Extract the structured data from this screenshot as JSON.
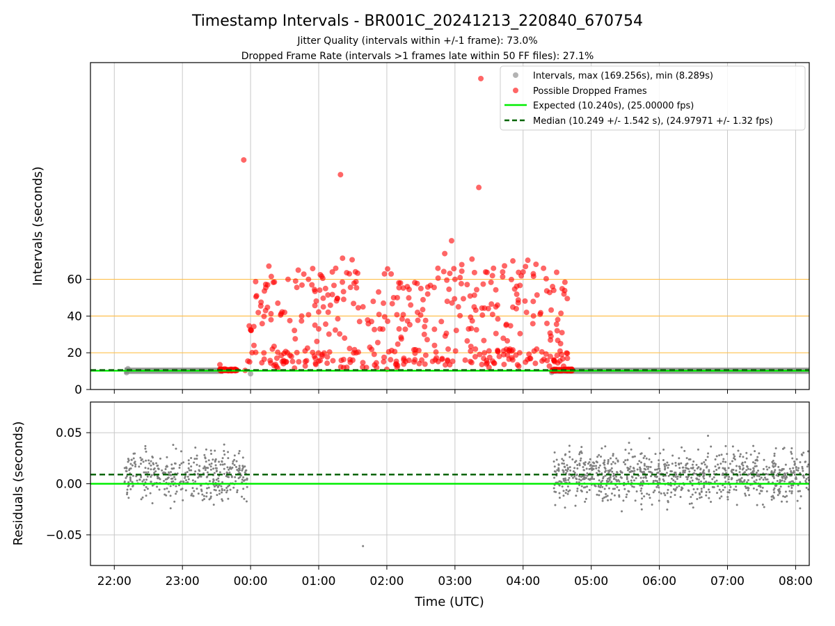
{
  "figure": {
    "title": "Timestamp Intervals - BR001C_20241213_220840_670754",
    "subtitle_1": "Jitter Quality (intervals within +/-1 frame): 73.0%",
    "subtitle_2": "Dropped Frame Rate (intervals >1 frames late within 50 FF files): 27.1%",
    "xlabel": "Time (UTC)"
  },
  "colors": {
    "intervals": "#808080",
    "dropped": "#ff0000",
    "expected": "#00ee00",
    "median": "#006400",
    "threshold": "#ffc04d",
    "grid": "#c8c8c8"
  },
  "chart_data": [
    {
      "type": "scatter",
      "ylabel": "Intervals (seconds)",
      "x_unit": "hours since 22:00 UTC",
      "xlim": [
        -0.35,
        10.2
      ],
      "ylim": [
        0,
        178
      ],
      "yticks": [
        0,
        20,
        40,
        60
      ],
      "xticks": [
        0,
        1,
        2,
        3,
        4,
        5,
        6,
        7,
        8,
        9,
        10
      ],
      "xtick_labels": [
        "22:00",
        "23:00",
        "00:00",
        "01:00",
        "02:00",
        "03:00",
        "04:00",
        "05:00",
        "06:00",
        "07:00",
        "08:00"
      ],
      "threshold_lines": [
        20,
        40,
        60
      ],
      "legend_position": "upper right",
      "legend": [
        "Intervals, max (169.256s), min (8.289s)",
        "Possible Dropped Frames",
        "Expected (10.240s), (25.00000 fps)",
        "Median (10.249 +/- 1.542 s), (24.97971 +/- 1.32 fps)"
      ],
      "series": [
        {
          "name": "Intervals, max (169.256s), min (8.289s)",
          "kind": "band",
          "value": 10.24,
          "segments": [
            [
              0.15,
              1.6
            ],
            [
              6.4,
              10.2
            ]
          ]
        },
        {
          "name": "Possible Dropped Frames",
          "kind": "points",
          "points": [
            [
              1.55,
              13.5
            ],
            [
              1.62,
              11.2
            ],
            [
              1.7,
              10.8
            ],
            [
              1.8,
              10.6
            ],
            [
              1.92,
              10.4
            ],
            [
              1.96,
              15.5
            ],
            [
              1.9,
              125
            ],
            [
              2.0,
              32.5
            ],
            [
              2.05,
              24
            ],
            [
              2.08,
              50.5
            ],
            [
              2.15,
              45.5
            ],
            [
              2.2,
              16.5
            ],
            [
              2.25,
              57
            ],
            [
              2.3,
              38
            ],
            [
              2.32,
              22
            ],
            [
              2.35,
              58.5
            ],
            [
              2.4,
              47
            ],
            [
              2.45,
              18.5
            ],
            [
              2.5,
              42
            ],
            [
              2.55,
              60
            ],
            [
              2.6,
              18
            ],
            [
              2.7,
              65
            ],
            [
              2.75,
              40
            ],
            [
              2.8,
              21
            ],
            [
              2.85,
              60
            ],
            [
              2.9,
              57
            ],
            [
              2.95,
              17
            ],
            [
              3.0,
              33
            ],
            [
              3.05,
              19
            ],
            [
              3.1,
              55
            ],
            [
              3.2,
              64
            ],
            [
              3.25,
              66
            ],
            [
              3.28,
              38.5
            ],
            [
              3.32,
              117
            ],
            [
              3.35,
              71.5
            ],
            [
              3.38,
              28
            ],
            [
              3.45,
              63
            ],
            [
              3.5,
              16
            ],
            [
              3.55,
              20
            ],
            [
              3.6,
              37
            ],
            [
              3.65,
              45
            ],
            [
              3.7,
              12
            ],
            [
              3.75,
              23
            ],
            [
              3.8,
              48
            ],
            [
              3.85,
              12
            ],
            [
              3.9,
              33
            ],
            [
              3.95,
              47
            ],
            [
              4.0,
              11
            ],
            [
              4.1,
              50
            ],
            [
              4.15,
              12
            ],
            [
              4.2,
              58
            ],
            [
              4.25,
              17
            ],
            [
              4.3,
              56
            ],
            [
              4.35,
              46
            ],
            [
              4.4,
              15
            ],
            [
              4.45,
              42
            ],
            [
              4.5,
              55
            ],
            [
              4.55,
              30
            ],
            [
              4.6,
              52
            ],
            [
              4.7,
              24
            ],
            [
              4.75,
              66
            ],
            [
              4.8,
              37
            ],
            [
              4.85,
              74
            ],
            [
              4.9,
              22
            ],
            [
              4.95,
              81
            ],
            [
              5.0,
              60
            ],
            [
              5.05,
              45
            ],
            [
              5.1,
              68
            ],
            [
              5.15,
              16
            ],
            [
              5.2,
              33
            ],
            [
              5.25,
              71
            ],
            [
              5.3,
              22
            ],
            [
              5.35,
              110
            ],
            [
              5.38,
              169.3
            ],
            [
              5.45,
              64
            ],
            [
              5.5,
              21
            ],
            [
              5.55,
              62
            ],
            [
              5.6,
              45
            ],
            [
              5.65,
              18
            ],
            [
              5.7,
              64
            ],
            [
              5.75,
              35
            ],
            [
              5.8,
              21
            ],
            [
              5.85,
              70
            ],
            [
              5.9,
              44
            ],
            [
              5.95,
              20
            ],
            [
              6.0,
              64
            ],
            [
              6.05,
              42
            ],
            [
              6.1,
              17
            ],
            [
              6.15,
              63
            ],
            [
              6.2,
              22
            ],
            [
              6.25,
              41
            ],
            [
              6.3,
              66
            ],
            [
              6.35,
              36
            ],
            [
              6.4,
              18
            ],
            [
              6.45,
              54
            ],
            [
              6.5,
              32
            ],
            [
              6.55,
              25
            ],
            [
              6.6,
              52
            ],
            [
              6.65,
              17
            ],
            [
              6.7,
              11
            ]
          ]
        },
        {
          "name": "Expected (10.240s), (25.00000 fps)",
          "kind": "hline",
          "value": 10.24
        },
        {
          "name": "Median (10.249 +/- 1.542 s), (24.97971 +/- 1.32 fps)",
          "kind": "hline_dashed",
          "value": 10.249
        }
      ]
    },
    {
      "type": "scatter",
      "ylabel": "Residuals (seconds)",
      "xlim": [
        -0.35,
        10.2
      ],
      "ylim": [
        -0.08,
        0.08
      ],
      "yticks": [
        -0.05,
        0.0,
        0.05
      ],
      "ytick_labels": [
        "−0.05",
        "0.00",
        "0.05"
      ],
      "series": [
        {
          "name": "Residuals",
          "kind": "points_random",
          "segments": [
            [
              0.15,
              1.95
            ],
            [
              6.45,
              10.2
            ]
          ],
          "center": 0.008,
          "spread": 0.022
        },
        {
          "name": "Expected residual",
          "kind": "hline",
          "value": 0.0
        },
        {
          "name": "Median residual",
          "kind": "hline_dashed",
          "value": 0.009
        }
      ]
    }
  ]
}
